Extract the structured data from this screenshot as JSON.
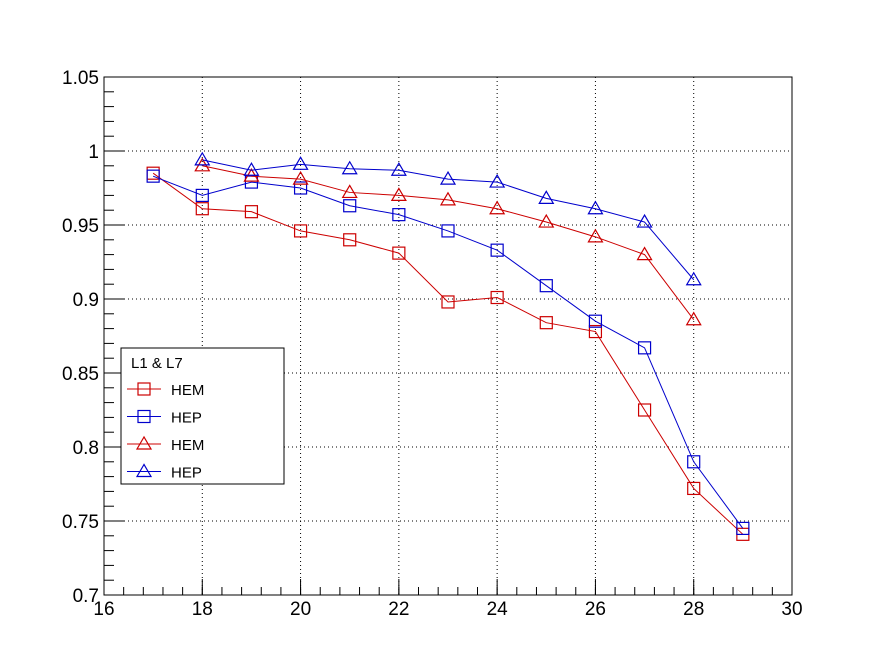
{
  "chart_data": {
    "type": "line",
    "title": "",
    "xlabel": "",
    "ylabel": "",
    "xlim": [
      16,
      30
    ],
    "ylim": [
      0.7,
      1.05
    ],
    "grid": true,
    "x_ticks": [
      "16",
      "18",
      "20",
      "22",
      "24",
      "26",
      "28",
      "30"
    ],
    "y_ticks": [
      "0.7",
      "0.75",
      "0.8",
      "0.85",
      "0.9",
      "0.95",
      "1",
      "1.05"
    ],
    "legend": {
      "title": "L1 & L7",
      "position": "left-middle"
    },
    "series": [
      {
        "name": "HEM",
        "color": "#cc0000",
        "marker": "square",
        "points": [
          [
            17,
            0.985
          ],
          [
            18,
            0.961
          ],
          [
            19,
            0.959
          ],
          [
            20,
            0.946
          ],
          [
            21,
            0.94
          ],
          [
            22,
            0.931
          ],
          [
            23,
            0.898
          ],
          [
            24,
            0.901
          ],
          [
            25,
            0.884
          ],
          [
            26,
            0.878
          ],
          [
            27,
            0.825
          ],
          [
            28,
            0.772
          ],
          [
            29,
            0.741
          ]
        ]
      },
      {
        "name": "HEP",
        "color": "#0000cc",
        "marker": "square",
        "points": [
          [
            17,
            0.983
          ],
          [
            18,
            0.97
          ],
          [
            19,
            0.979
          ],
          [
            20,
            0.975
          ],
          [
            21,
            0.963
          ],
          [
            22,
            0.957
          ],
          [
            23,
            0.946
          ],
          [
            24,
            0.933
          ],
          [
            25,
            0.909
          ],
          [
            26,
            0.885
          ],
          [
            27,
            0.867
          ],
          [
            28,
            0.79
          ],
          [
            29,
            0.745
          ]
        ]
      },
      {
        "name": "HEM",
        "color": "#cc0000",
        "marker": "triangle",
        "points": [
          [
            18,
            0.99
          ],
          [
            19,
            0.983
          ],
          [
            20,
            0.981
          ],
          [
            21,
            0.972
          ],
          [
            22,
            0.97
          ],
          [
            23,
            0.967
          ],
          [
            24,
            0.961
          ],
          [
            25,
            0.952
          ],
          [
            26,
            0.942
          ],
          [
            27,
            0.93
          ],
          [
            28,
            0.886
          ]
        ]
      },
      {
        "name": "HEP",
        "color": "#0000cc",
        "marker": "triangle",
        "points": [
          [
            18,
            0.994
          ],
          [
            19,
            0.987
          ],
          [
            20,
            0.991
          ],
          [
            21,
            0.988
          ],
          [
            22,
            0.987
          ],
          [
            23,
            0.981
          ],
          [
            24,
            0.979
          ],
          [
            25,
            0.968
          ],
          [
            26,
            0.961
          ],
          [
            27,
            0.952
          ],
          [
            28,
            0.913
          ]
        ]
      }
    ]
  }
}
